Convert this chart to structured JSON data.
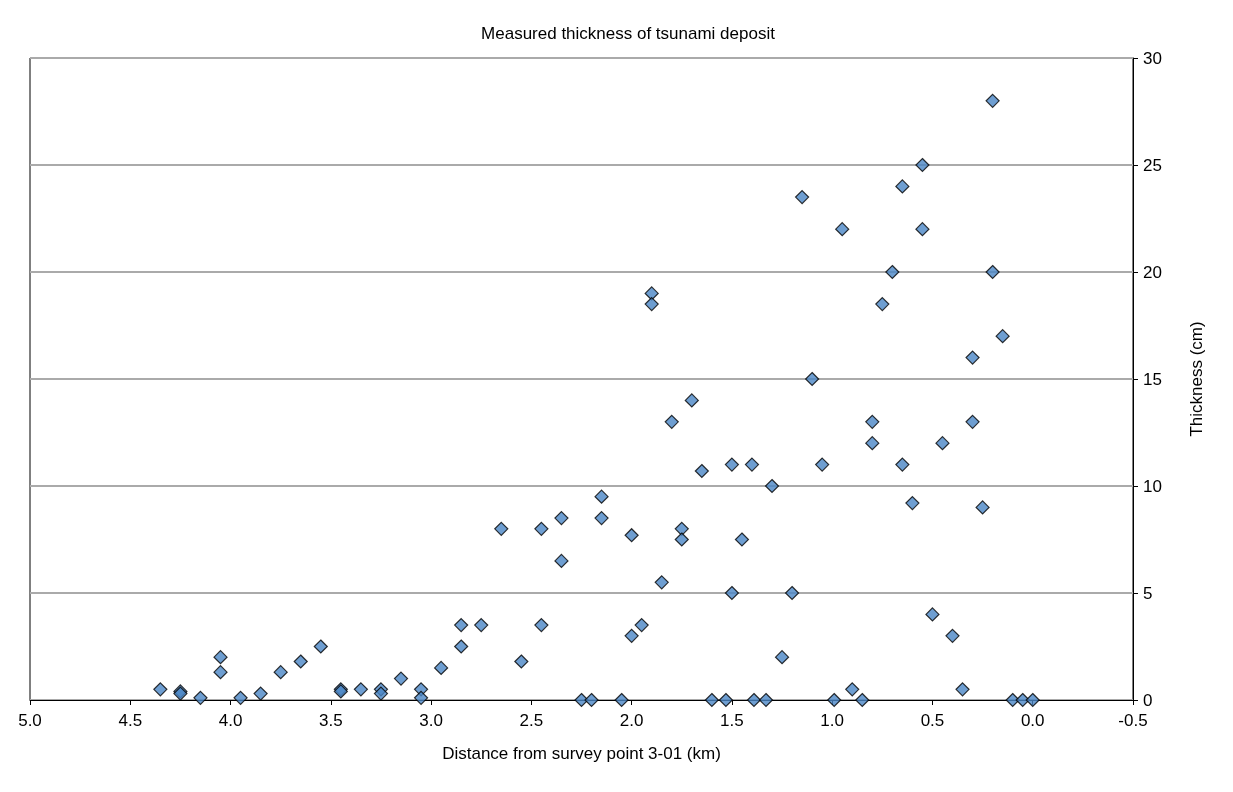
{
  "chart_data": {
    "type": "scatter",
    "title": "Measured thickness of tsunami deposit",
    "xlabel": "Distance from survey point 3-01 (km)",
    "ylabel": "Thickness (cm)",
    "x": [
      4.35,
      4.25,
      4.25,
      4.15,
      4.05,
      4.05,
      3.95,
      3.85,
      3.75,
      3.65,
      3.55,
      3.45,
      3.45,
      3.35,
      3.25,
      3.25,
      3.15,
      3.05,
      3.05,
      2.95,
      2.85,
      2.85,
      2.75,
      2.65,
      2.55,
      2.45,
      2.45,
      2.35,
      2.35,
      2.25,
      2.2,
      2.15,
      2.15,
      2.05,
      2.0,
      2.0,
      1.95,
      1.9,
      1.9,
      1.85,
      1.8,
      1.75,
      1.75,
      1.7,
      1.65,
      1.6,
      1.53,
      1.5,
      1.5,
      1.45,
      1.4,
      1.39,
      1.33,
      1.3,
      1.25,
      1.2,
      1.15,
      1.1,
      1.05,
      0.99,
      0.95,
      0.9,
      0.85,
      0.8,
      0.8,
      0.75,
      0.7,
      0.65,
      0.65,
      0.6,
      0.55,
      0.55,
      0.5,
      0.45,
      0.4,
      0.35,
      0.3,
      0.3,
      0.25,
      0.2,
      0.2,
      0.15,
      0.1,
      0.05,
      0.0
    ],
    "values": [
      0.5,
      0.4,
      0.3,
      0.1,
      2.0,
      1.3,
      0.1,
      0.3,
      1.3,
      1.8,
      2.5,
      0.5,
      0.4,
      0.5,
      0.5,
      0.3,
      1.0,
      0.5,
      0.1,
      1.5,
      3.5,
      2.5,
      3.5,
      8.0,
      1.8,
      8.0,
      3.5,
      8.5,
      6.5,
      0,
      0,
      9.5,
      8.5,
      0,
      7.7,
      3.0,
      3.5,
      19,
      18.5,
      5.5,
      13,
      8,
      7.5,
      14,
      10.7,
      0,
      0,
      11,
      5.0,
      7.5,
      11,
      0,
      0,
      10,
      2.0,
      5.0,
      23.5,
      15,
      11,
      0,
      22,
      0.5,
      0,
      13,
      12,
      18.5,
      20,
      24,
      11,
      9.2,
      25,
      22,
      4.0,
      12,
      3.0,
      0.5,
      13,
      16,
      9,
      20,
      28,
      17,
      0,
      0,
      0
    ],
    "color": "#4a86c6",
    "marker": "diamond",
    "grid": "y",
    "xlim": [
      5.0,
      -0.5
    ],
    "xticks": [
      {
        "value": 5,
        "label": "5.0"
      },
      {
        "value": 4.5,
        "label": "4.5"
      },
      {
        "value": 4,
        "label": "4.0"
      },
      {
        "value": 3.5,
        "label": "3.5"
      },
      {
        "value": 3,
        "label": "3.0"
      },
      {
        "value": 2.5,
        "label": "2.5"
      },
      {
        "value": 2,
        "label": "2.0"
      },
      {
        "value": 1.5,
        "label": "1.5"
      },
      {
        "value": 1,
        "label": "1.0"
      },
      {
        "value": 0.5,
        "label": "0.5"
      },
      {
        "value": 0,
        "label": "0.0"
      },
      {
        "value": -0.5,
        "label": "-0.5"
      }
    ],
    "ylim": [
      0,
      30
    ],
    "yticks": [
      0,
      5,
      10,
      15,
      20,
      25,
      30
    ]
  }
}
